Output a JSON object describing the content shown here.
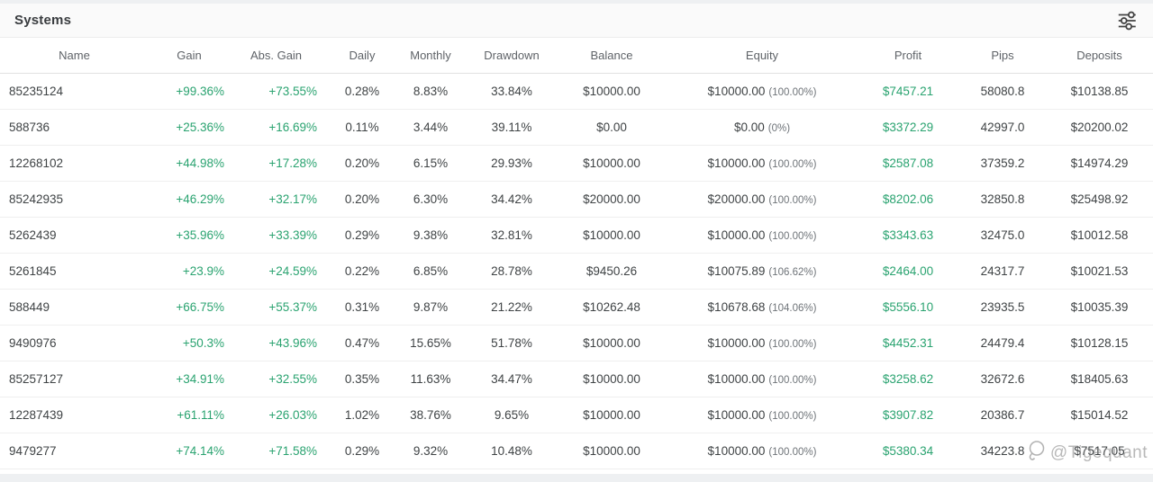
{
  "window": {
    "title": "Systems"
  },
  "toolbar": {
    "filter_icon": "sliders-icon"
  },
  "colors": {
    "positive": "#2aa370",
    "text": "#3f4345",
    "header_text": "#5f6368"
  },
  "watermark": {
    "logo_icon": "ghost-logo-icon",
    "text": "@Tigequant"
  },
  "table": {
    "columns": [
      {
        "key": "name",
        "label": "Name"
      },
      {
        "key": "gain",
        "label": "Gain"
      },
      {
        "key": "abs_gain",
        "label": "Abs. Gain"
      },
      {
        "key": "daily",
        "label": "Daily"
      },
      {
        "key": "monthly",
        "label": "Monthly"
      },
      {
        "key": "drawdown",
        "label": "Drawdown"
      },
      {
        "key": "balance",
        "label": "Balance"
      },
      {
        "key": "equity",
        "label": "Equity"
      },
      {
        "key": "profit",
        "label": "Profit"
      },
      {
        "key": "pips",
        "label": "Pips"
      },
      {
        "key": "deposits",
        "label": "Deposits"
      }
    ],
    "rows": [
      {
        "name": "85235124",
        "gain": "+99.36%",
        "abs_gain": "+73.55%",
        "daily": "0.28%",
        "monthly": "8.83%",
        "drawdown": "33.84%",
        "balance": "$10000.00",
        "equity": "$10000.00",
        "equity_pct": "(100.00%)",
        "profit": "$7457.21",
        "pips": "58080.8",
        "deposits": "$10138.85"
      },
      {
        "name": "588736",
        "gain": "+25.36%",
        "abs_gain": "+16.69%",
        "daily": "0.11%",
        "monthly": "3.44%",
        "drawdown": "39.11%",
        "balance": "$0.00",
        "equity": "$0.00",
        "equity_pct": "(0%)",
        "profit": "$3372.29",
        "pips": "42997.0",
        "deposits": "$20200.02"
      },
      {
        "name": "12268102",
        "gain": "+44.98%",
        "abs_gain": "+17.28%",
        "daily": "0.20%",
        "monthly": "6.15%",
        "drawdown": "29.93%",
        "balance": "$10000.00",
        "equity": "$10000.00",
        "equity_pct": "(100.00%)",
        "profit": "$2587.08",
        "pips": "37359.2",
        "deposits": "$14974.29"
      },
      {
        "name": "85242935",
        "gain": "+46.29%",
        "abs_gain": "+32.17%",
        "daily": "0.20%",
        "monthly": "6.30%",
        "drawdown": "34.42%",
        "balance": "$20000.00",
        "equity": "$20000.00",
        "equity_pct": "(100.00%)",
        "profit": "$8202.06",
        "pips": "32850.8",
        "deposits": "$25498.92"
      },
      {
        "name": "5262439",
        "gain": "+35.96%",
        "abs_gain": "+33.39%",
        "daily": "0.29%",
        "monthly": "9.38%",
        "drawdown": "32.81%",
        "balance": "$10000.00",
        "equity": "$10000.00",
        "equity_pct": "(100.00%)",
        "profit": "$3343.63",
        "pips": "32475.0",
        "deposits": "$10012.58"
      },
      {
        "name": "5261845",
        "gain": "+23.9%",
        "abs_gain": "+24.59%",
        "daily": "0.22%",
        "monthly": "6.85%",
        "drawdown": "28.78%",
        "balance": "$9450.26",
        "equity": "$10075.89",
        "equity_pct": "(106.62%)",
        "profit": "$2464.00",
        "pips": "24317.7",
        "deposits": "$10021.53"
      },
      {
        "name": "588449",
        "gain": "+66.75%",
        "abs_gain": "+55.37%",
        "daily": "0.31%",
        "monthly": "9.87%",
        "drawdown": "21.22%",
        "balance": "$10262.48",
        "equity": "$10678.68",
        "equity_pct": "(104.06%)",
        "profit": "$5556.10",
        "pips": "23935.5",
        "deposits": "$10035.39"
      },
      {
        "name": "9490976",
        "gain": "+50.3%",
        "abs_gain": "+43.96%",
        "daily": "0.47%",
        "monthly": "15.65%",
        "drawdown": "51.78%",
        "balance": "$10000.00",
        "equity": "$10000.00",
        "equity_pct": "(100.00%)",
        "profit": "$4452.31",
        "pips": "24479.4",
        "deposits": "$10128.15"
      },
      {
        "name": "85257127",
        "gain": "+34.91%",
        "abs_gain": "+32.55%",
        "daily": "0.35%",
        "monthly": "11.63%",
        "drawdown": "34.47%",
        "balance": "$10000.00",
        "equity": "$10000.00",
        "equity_pct": "(100.00%)",
        "profit": "$3258.62",
        "pips": "32672.6",
        "deposits": "$18405.63"
      },
      {
        "name": "12287439",
        "gain": "+61.11%",
        "abs_gain": "+26.03%",
        "daily": "1.02%",
        "monthly": "38.76%",
        "drawdown": "9.65%",
        "balance": "$10000.00",
        "equity": "$10000.00",
        "equity_pct": "(100.00%)",
        "profit": "$3907.82",
        "pips": "20386.7",
        "deposits": "$15014.52"
      },
      {
        "name": "9479277",
        "gain": "+74.14%",
        "abs_gain": "+71.58%",
        "daily": "0.29%",
        "monthly": "9.32%",
        "drawdown": "10.48%",
        "balance": "$10000.00",
        "equity": "$10000.00",
        "equity_pct": "(100.00%)",
        "profit": "$5380.34",
        "pips": "34223.8",
        "deposits": "$7517.05"
      }
    ]
  }
}
